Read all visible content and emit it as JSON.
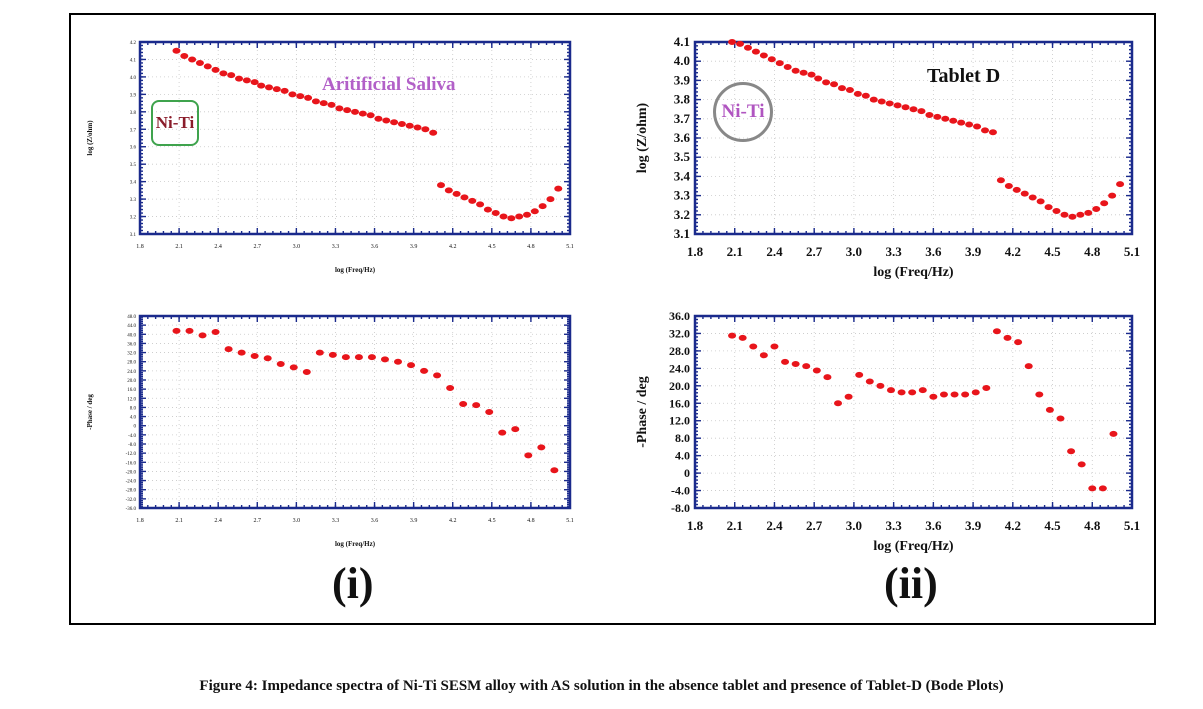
{
  "figure": {
    "caption": "Figure 4: Impedance spectra of Ni-Ti SESM alloy with AS solution in the absence tablet and presence of Tablet-D (Bode Plots)",
    "panel_labels": [
      "(i)",
      "(ii)"
    ]
  },
  "annotations": {
    "niti_left": "Ni-Ti",
    "saliva": "Aritificial Saliva",
    "tablet": "Tablet D",
    "niti_right": "Ni-Ti"
  },
  "colors": {
    "marker": "#e8151b",
    "axis": "#1a2a8c",
    "grid": "#c8c8c8"
  },
  "chart_data": [
    {
      "id": "i-mod",
      "type": "scatter",
      "xlabel": "log (Freq/Hz)",
      "ylabel": "log (Z/ohm)",
      "xlim": [
        1.8,
        5.1
      ],
      "ylim": [
        3.1,
        4.2
      ],
      "xticks": [
        "1.8",
        "2.1",
        "2.4",
        "2.7",
        "3.0",
        "3.3",
        "3.6",
        "3.9",
        "4.2",
        "4.5",
        "4.8",
        "5.1"
      ],
      "yticks": [
        "3.1",
        "3.2",
        "3.3",
        "3.4",
        "3.5",
        "3.6",
        "3.7",
        "3.8",
        "3.9",
        "4.0",
        "4.1",
        "4.2"
      ],
      "series": [
        {
          "x": [
            2.08,
            2.14,
            2.2,
            2.26,
            2.32,
            2.38,
            2.44,
            2.5,
            2.56,
            2.62,
            2.68,
            2.73,
            2.79,
            2.85,
            2.91,
            2.97,
            3.03,
            3.09,
            3.15,
            3.21,
            3.27,
            3.33,
            3.39,
            3.45,
            3.51,
            3.57,
            3.63,
            3.69,
            3.75,
            3.81,
            3.87,
            3.93,
            3.99,
            4.05,
            4.11,
            4.17,
            4.23,
            4.29,
            4.35,
            4.41,
            4.47,
            4.53,
            4.59,
            4.65,
            4.71,
            4.77,
            4.83,
            4.89,
            4.95,
            5.01
          ],
          "y": [
            4.15,
            4.12,
            4.1,
            4.08,
            4.06,
            4.04,
            4.02,
            4.01,
            3.99,
            3.98,
            3.97,
            3.95,
            3.94,
            3.93,
            3.92,
            3.9,
            3.89,
            3.88,
            3.86,
            3.85,
            3.84,
            3.82,
            3.81,
            3.8,
            3.79,
            3.78,
            3.76,
            3.75,
            3.74,
            3.73,
            3.72,
            3.71,
            3.7,
            3.68,
            3.38,
            3.35,
            3.33,
            3.31,
            3.29,
            3.27,
            3.24,
            3.22,
            3.2,
            3.19,
            3.2,
            3.21,
            3.23,
            3.26,
            3.3,
            3.36
          ]
        }
      ]
    },
    {
      "id": "i-phase",
      "type": "scatter",
      "xlabel": "log (Freq/Hz)",
      "ylabel": "-Phase / deg",
      "xlim": [
        1.8,
        5.1
      ],
      "ylim": [
        -36,
        48
      ],
      "xticks": [
        "1.8",
        "2.1",
        "2.4",
        "2.7",
        "3.0",
        "3.3",
        "3.6",
        "3.9",
        "4.2",
        "4.5",
        "4.8",
        "5.1"
      ],
      "yticks": [
        "-36.0",
        "-32.0",
        "-28.0",
        "-24.0",
        "-20.0",
        "-16.0",
        "-12.0",
        "-8.0",
        "-4.0",
        "0",
        "4.0",
        "8.0",
        "12.0",
        "16.0",
        "20.0",
        "24.0",
        "28.0",
        "32.0",
        "36.0",
        "40.0",
        "44.0",
        "48.0"
      ],
      "series": [
        {
          "x": [
            2.08,
            2.18,
            2.28,
            2.38,
            2.48,
            2.58,
            2.68,
            2.78,
            2.88,
            2.98,
            3.08,
            3.18,
            3.28,
            3.38,
            3.48,
            3.58,
            3.68,
            3.78,
            3.88,
            3.98,
            4.08,
            4.18,
            4.28,
            4.38,
            4.48,
            4.58,
            4.68,
            4.78,
            4.88,
            4.98
          ],
          "y": [
            41.5,
            41.5,
            39.5,
            41.0,
            33.5,
            32.0,
            30.5,
            29.5,
            27.0,
            25.5,
            23.5,
            32.0,
            31.0,
            30.0,
            30.0,
            30.0,
            29.0,
            28.0,
            26.5,
            24.0,
            22.0,
            16.5,
            9.5,
            9.0,
            6.0,
            -3.0,
            -1.5,
            -13.0,
            -9.5,
            -19.5
          ]
        }
      ]
    },
    {
      "id": "ii-mod",
      "type": "scatter",
      "xlabel": "log (Freq/Hz)",
      "ylabel": "log (Z/ohm)",
      "xlim": [
        1.8,
        5.1
      ],
      "ylim": [
        3.1,
        4.1
      ],
      "xticks": [
        "1.8",
        "2.1",
        "2.4",
        "2.7",
        "3.0",
        "3.3",
        "3.6",
        "3.9",
        "4.2",
        "4.5",
        "4.8",
        "5.1"
      ],
      "yticks": [
        "3.1",
        "3.2",
        "3.3",
        "3.4",
        "3.5",
        "3.6",
        "3.7",
        "3.8",
        "3.9",
        "4.0",
        "4.1"
      ],
      "series": [
        {
          "x": [
            2.08,
            2.14,
            2.2,
            2.26,
            2.32,
            2.38,
            2.44,
            2.5,
            2.56,
            2.62,
            2.68,
            2.73,
            2.79,
            2.85,
            2.91,
            2.97,
            3.03,
            3.09,
            3.15,
            3.21,
            3.27,
            3.33,
            3.39,
            3.45,
            3.51,
            3.57,
            3.63,
            3.69,
            3.75,
            3.81,
            3.87,
            3.93,
            3.99,
            4.05,
            4.11,
            4.17,
            4.23,
            4.29,
            4.35,
            4.41,
            4.47,
            4.53,
            4.59,
            4.65,
            4.71,
            4.77,
            4.83,
            4.89,
            4.95,
            5.01
          ],
          "y": [
            4.1,
            4.09,
            4.07,
            4.05,
            4.03,
            4.01,
            3.99,
            3.97,
            3.95,
            3.94,
            3.93,
            3.91,
            3.89,
            3.88,
            3.86,
            3.85,
            3.83,
            3.82,
            3.8,
            3.79,
            3.78,
            3.77,
            3.76,
            3.75,
            3.74,
            3.72,
            3.71,
            3.7,
            3.69,
            3.68,
            3.67,
            3.66,
            3.64,
            3.63,
            3.38,
            3.35,
            3.33,
            3.31,
            3.29,
            3.27,
            3.24,
            3.22,
            3.2,
            3.19,
            3.2,
            3.21,
            3.23,
            3.26,
            3.3,
            3.36
          ]
        }
      ]
    },
    {
      "id": "ii-phase",
      "type": "scatter",
      "xlabel": "log (Freq/Hz)",
      "ylabel": "-Phase / deg",
      "xlim": [
        1.8,
        5.1
      ],
      "ylim": [
        -8,
        36
      ],
      "xticks": [
        "1.8",
        "2.1",
        "2.4",
        "2.7",
        "3.0",
        "3.3",
        "3.6",
        "3.9",
        "4.2",
        "4.5",
        "4.8",
        "5.1"
      ],
      "yticks": [
        "-8.0",
        "-4.0",
        "0",
        "4.0",
        "8.0",
        "12.0",
        "16.0",
        "20.0",
        "24.0",
        "28.0",
        "32.0",
        "36.0"
      ],
      "series": [
        {
          "x": [
            2.08,
            2.16,
            2.24,
            2.32,
            2.4,
            2.48,
            2.56,
            2.64,
            2.72,
            2.8,
            2.88,
            2.96,
            3.04,
            3.12,
            3.2,
            3.28,
            3.36,
            3.44,
            3.52,
            3.6,
            3.68,
            3.76,
            3.84,
            3.92,
            4.0,
            4.08,
            4.16,
            4.24,
            4.32,
            4.4,
            4.48,
            4.56,
            4.64,
            4.72,
            4.8,
            4.88,
            4.96
          ],
          "y": [
            31.5,
            31.0,
            29.0,
            27.0,
            29.0,
            25.5,
            25.0,
            24.5,
            23.5,
            22.0,
            16.0,
            17.5,
            22.5,
            21.0,
            20.0,
            19.0,
            18.5,
            18.5,
            19.0,
            17.5,
            18.0,
            18.0,
            18.0,
            18.5,
            19.5,
            32.5,
            31.0,
            30.0,
            24.5,
            18.0,
            14.5,
            12.5,
            5.0,
            2.0,
            -3.5,
            -3.5,
            9.0
          ]
        }
      ]
    }
  ]
}
